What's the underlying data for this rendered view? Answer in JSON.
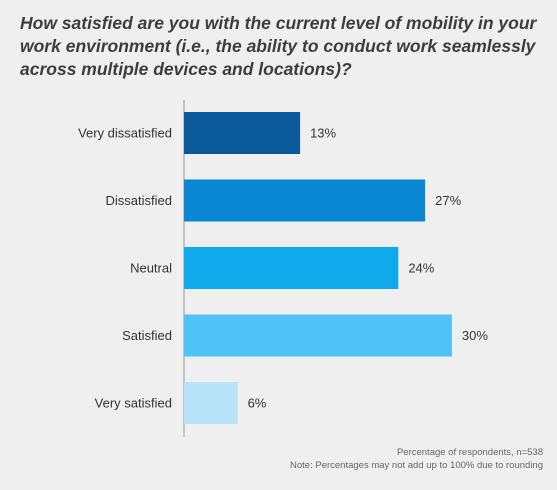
{
  "chart_data": {
    "type": "bar",
    "orientation": "horizontal",
    "title": "How satisfied are you with the current level of mobility in your work environment (i.e., the ability to conduct work seamlessly across multiple devices and locations)?",
    "categories": [
      "Very dissatisfied",
      "Dissatisfied",
      "Neutral",
      "Satisfied",
      "Very satisfied"
    ],
    "values": [
      13,
      27,
      24,
      30,
      6
    ],
    "value_labels": [
      "13%",
      "27%",
      "24%",
      "30%",
      "6%"
    ],
    "colors": [
      "#0b5a9c",
      "#0a87d4",
      "#10a9ec",
      "#4fc3f5",
      "#b8e3f8"
    ],
    "xlim": [
      0,
      40
    ],
    "grid": false
  },
  "footnotes": {
    "line1": "Percentage of respondents, n=538",
    "line2": "Note: Percentages may not add up to 100% due to rounding"
  }
}
